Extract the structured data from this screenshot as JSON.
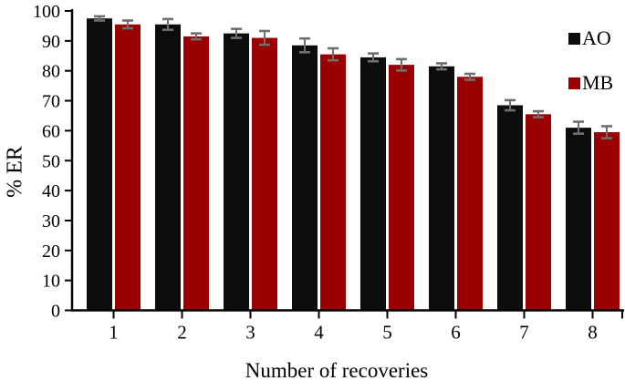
{
  "chart_data": {
    "type": "bar",
    "title": "",
    "xlabel": "Number of recoveries",
    "ylabel": "% ER",
    "categories": [
      "1",
      "2",
      "3",
      "4",
      "5",
      "6",
      "7",
      "8"
    ],
    "series": [
      {
        "name": "AO",
        "color": "#0d0d0d",
        "values": [
          97.5,
          95.5,
          92.5,
          88.5,
          84.5,
          81.5,
          68.5,
          61
        ],
        "errors": [
          0.7,
          1.8,
          1.5,
          2.3,
          1.3,
          1.0,
          1.7,
          2.0
        ]
      },
      {
        "name": "MB",
        "color": "#9a0000",
        "values": [
          95.5,
          91.5,
          91,
          85.5,
          82,
          78,
          65.5,
          59.5
        ],
        "errors": [
          1.3,
          1.0,
          2.3,
          2.0,
          1.9,
          1.0,
          1.0,
          2.0
        ]
      }
    ],
    "ylim": [
      0,
      100
    ],
    "yticks": [
      0,
      10,
      20,
      30,
      40,
      50,
      60,
      70,
      80,
      90,
      100
    ],
    "grid": false,
    "legend_position": "top-right",
    "error_bar_color": "#6f6f6f",
    "axis_color": "#000000",
    "background_color": "#ffffff"
  }
}
